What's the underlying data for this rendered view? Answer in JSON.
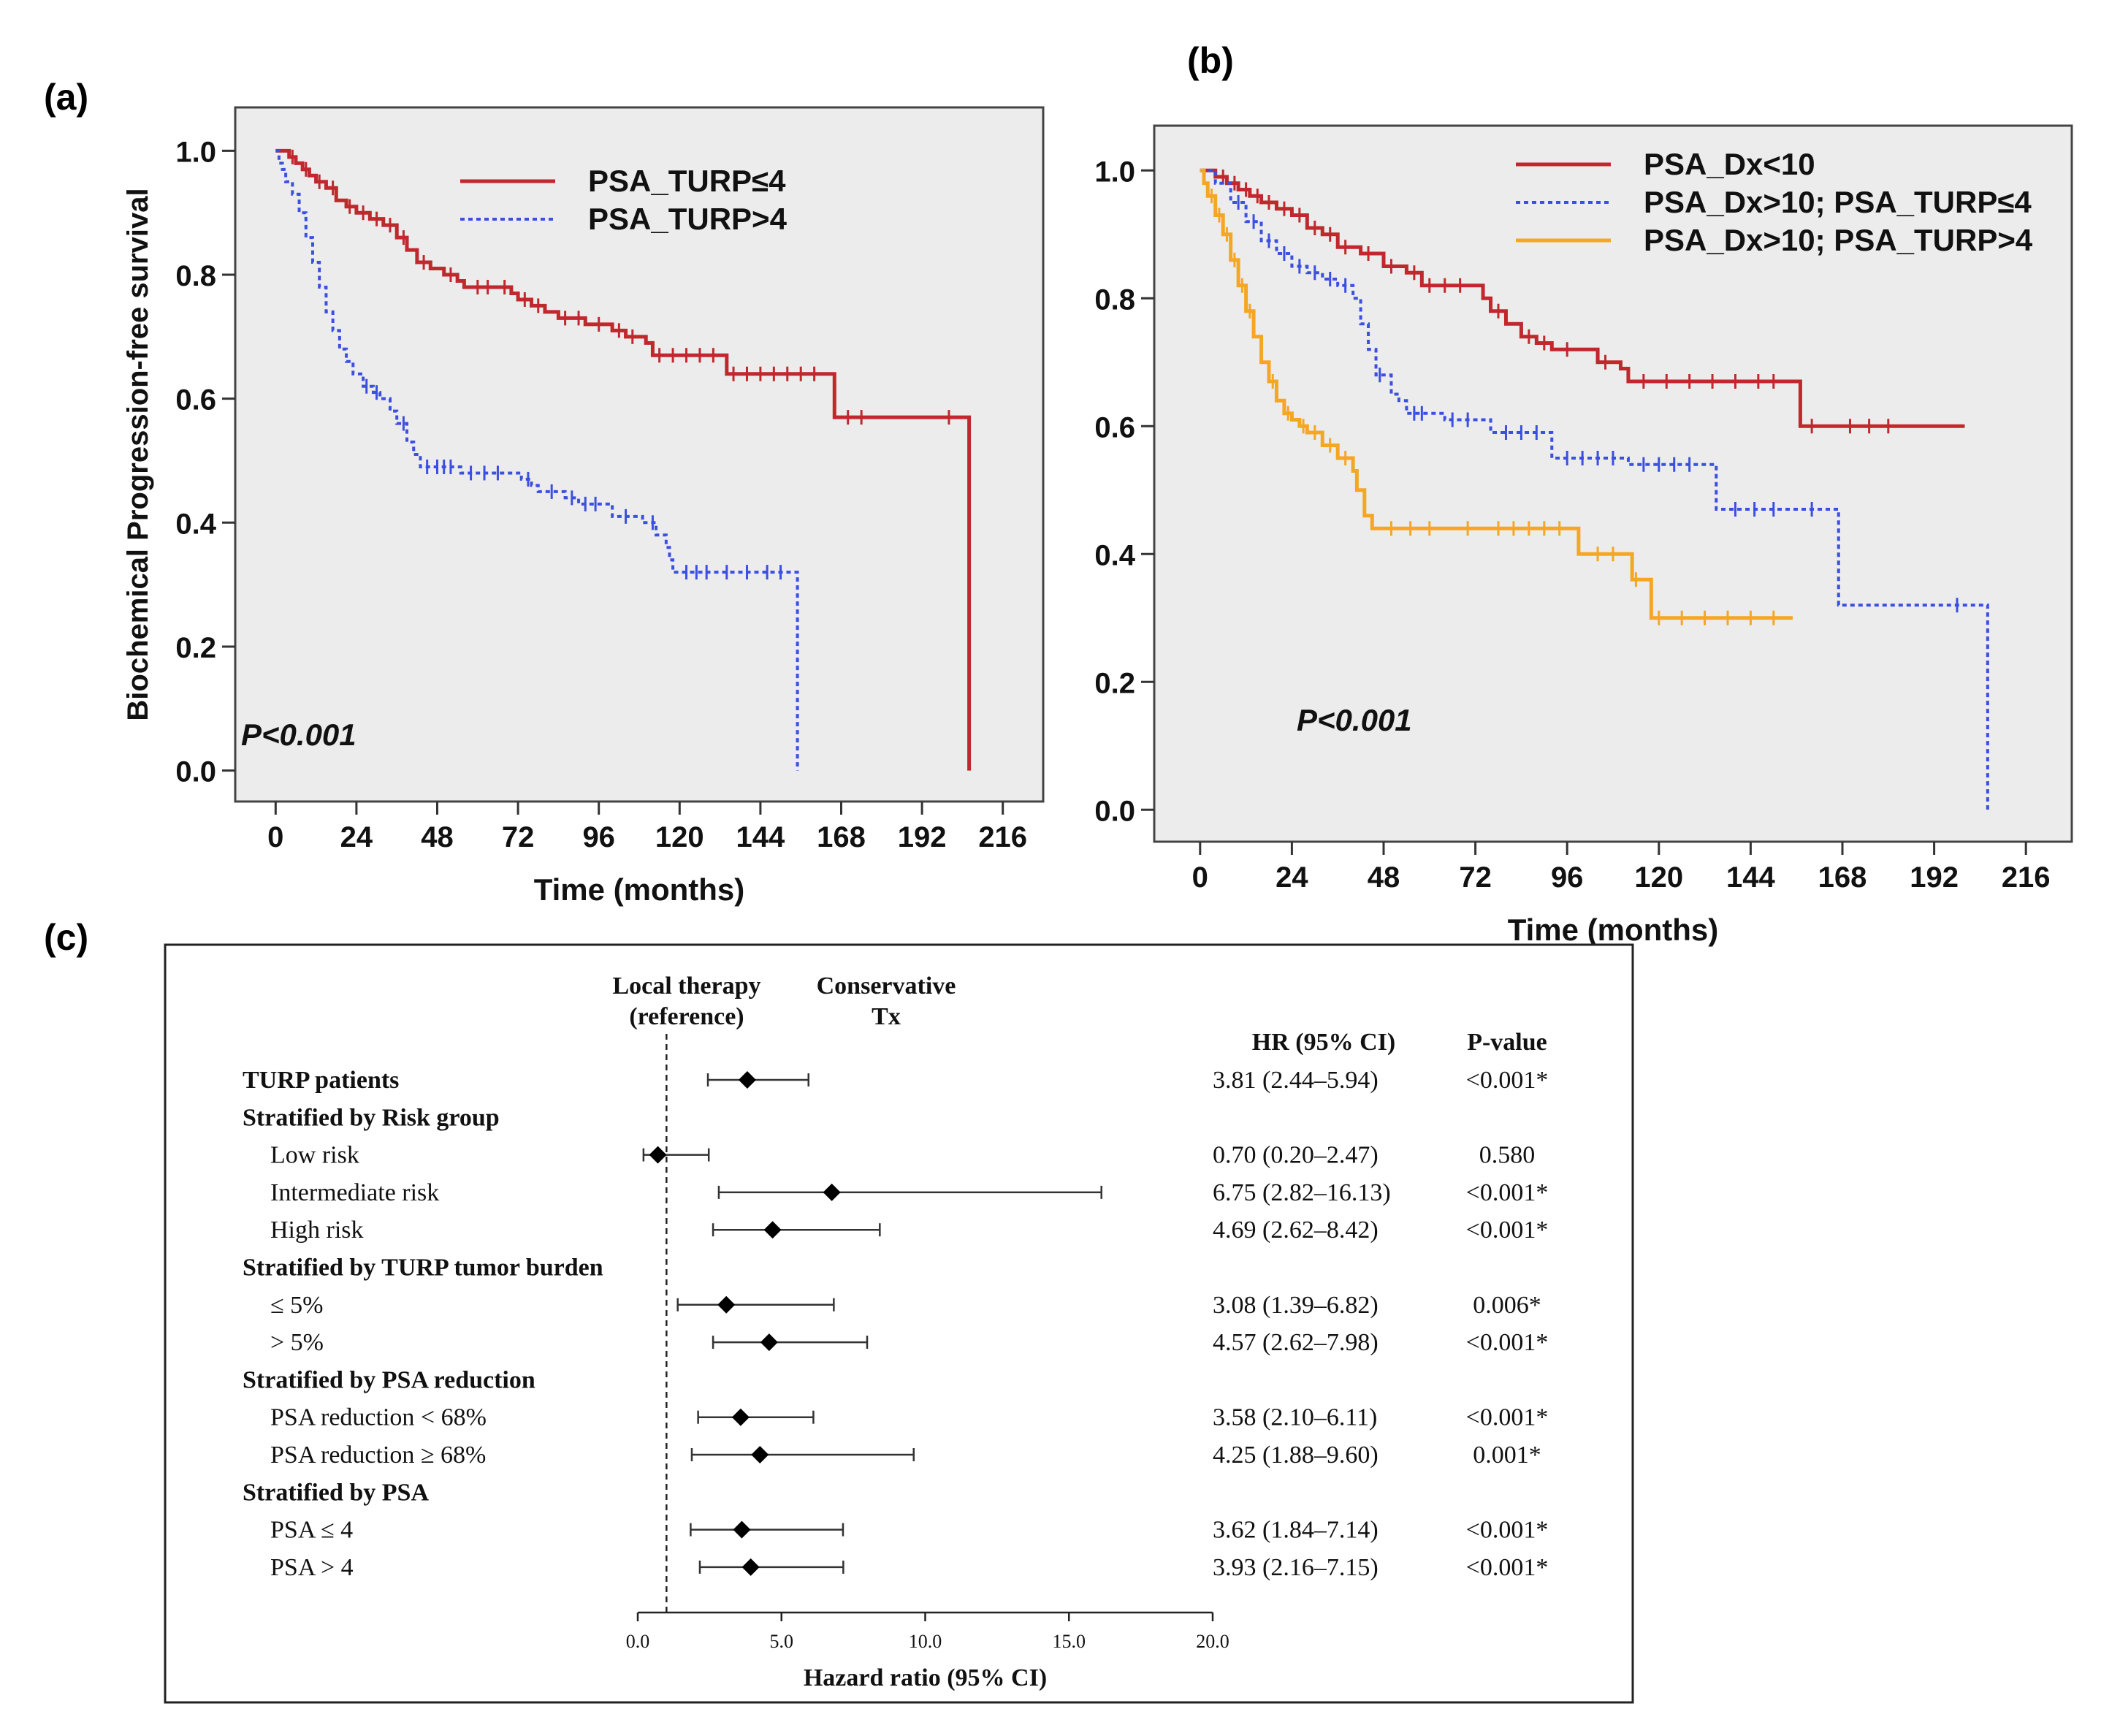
{
  "chart_data": [
    {
      "id": "a",
      "panel_label": "(a)",
      "type": "line",
      "subtype": "kaplan-meier",
      "xlabel": "Time (months)",
      "ylabel": "Biochemical Progression-free survival",
      "xlim": [
        -12,
        228
      ],
      "ylim": [
        -0.05,
        1.07
      ],
      "xticks": [
        0,
        24,
        48,
        72,
        96,
        120,
        144,
        168,
        192,
        216
      ],
      "yticks": [
        0.0,
        0.2,
        0.4,
        0.6,
        0.8,
        1.0
      ],
      "ytick_labels": [
        "0.0",
        "0.2",
        "0.4",
        "0.6",
        "0.8",
        "1.0"
      ],
      "annotation": "P<0.001",
      "legend_position": "top-right",
      "series": [
        {
          "name": "PSA_TURP≤4",
          "color": "#c0282d",
          "dash": "solid",
          "steps": [
            [
              0,
              1.0
            ],
            [
              3,
              1.0
            ],
            [
              4,
              0.99
            ],
            [
              6,
              0.98
            ],
            [
              8,
              0.97
            ],
            [
              10,
              0.96
            ],
            [
              12,
              0.95
            ],
            [
              15,
              0.94
            ],
            [
              18,
              0.92
            ],
            [
              21,
              0.91
            ],
            [
              24,
              0.9
            ],
            [
              28,
              0.89
            ],
            [
              32,
              0.88
            ],
            [
              36,
              0.86
            ],
            [
              39,
              0.84
            ],
            [
              42,
              0.82
            ],
            [
              46,
              0.81
            ],
            [
              50,
              0.8
            ],
            [
              54,
              0.79
            ],
            [
              56,
              0.78
            ],
            [
              66,
              0.78
            ],
            [
              70,
              0.77
            ],
            [
              72,
              0.76
            ],
            [
              76,
              0.75
            ],
            [
              80,
              0.74
            ],
            [
              84,
              0.73
            ],
            [
              88,
              0.73
            ],
            [
              92,
              0.72
            ],
            [
              98,
              0.72
            ],
            [
              100,
              0.71
            ],
            [
              104,
              0.7
            ],
            [
              110,
              0.69
            ],
            [
              112,
              0.67
            ],
            [
              132,
              0.67
            ],
            [
              134,
              0.64
            ],
            [
              165,
              0.64
            ],
            [
              166,
              0.57
            ],
            [
              206,
              0.57
            ],
            [
              206,
              0.0
            ]
          ],
          "censor_x": [
            5,
            9,
            13,
            17,
            22,
            26,
            30,
            34,
            38,
            44,
            52,
            60,
            63,
            68,
            74,
            78,
            86,
            90,
            96,
            102,
            106,
            114,
            118,
            122,
            126,
            130,
            136,
            140,
            144,
            148,
            152,
            156,
            160,
            170,
            174,
            200
          ]
        },
        {
          "name": "PSA_TURP>4",
          "color": "#3b4fe0",
          "dash": "dotted",
          "steps": [
            [
              0,
              1.0
            ],
            [
              1,
              0.98
            ],
            [
              2,
              0.97
            ],
            [
              3,
              0.95
            ],
            [
              5,
              0.93
            ],
            [
              7,
              0.9
            ],
            [
              9,
              0.86
            ],
            [
              11,
              0.82
            ],
            [
              13,
              0.78
            ],
            [
              15,
              0.74
            ],
            [
              17,
              0.71
            ],
            [
              19,
              0.68
            ],
            [
              21,
              0.66
            ],
            [
              23,
              0.64
            ],
            [
              26,
              0.62
            ],
            [
              29,
              0.61
            ],
            [
              31,
              0.6
            ],
            [
              34,
              0.58
            ],
            [
              36,
              0.56
            ],
            [
              39,
              0.53
            ],
            [
              41,
              0.51
            ],
            [
              43,
              0.49
            ],
            [
              53,
              0.49
            ],
            [
              55,
              0.48
            ],
            [
              71,
              0.48
            ],
            [
              73,
              0.47
            ],
            [
              76,
              0.46
            ],
            [
              78,
              0.45
            ],
            [
              84,
              0.45
            ],
            [
              86,
              0.44
            ],
            [
              90,
              0.43
            ],
            [
              98,
              0.43
            ],
            [
              100,
              0.41
            ],
            [
              107,
              0.41
            ],
            [
              109,
              0.4
            ],
            [
              113,
              0.38
            ],
            [
              116,
              0.36
            ],
            [
              117,
              0.34
            ],
            [
              118,
              0.32
            ],
            [
              155,
              0.32
            ],
            [
              155,
              0.0
            ]
          ],
          "censor_x": [
            27,
            30,
            38,
            45,
            48,
            50,
            52,
            58,
            62,
            66,
            75,
            82,
            88,
            92,
            95,
            104,
            112,
            122,
            125,
            128,
            134,
            140,
            146,
            150
          ]
        }
      ]
    },
    {
      "id": "b",
      "panel_label": "(b)",
      "type": "line",
      "subtype": "kaplan-meier",
      "xlabel": "Time (months)",
      "ylabel": "",
      "xlim": [
        -12,
        228
      ],
      "ylim": [
        -0.05,
        1.07
      ],
      "xticks": [
        0,
        24,
        48,
        72,
        96,
        120,
        144,
        168,
        192,
        216
      ],
      "yticks": [
        0.0,
        0.2,
        0.4,
        0.6,
        0.8,
        1.0
      ],
      "ytick_labels": [
        "0.0",
        "0.2",
        "0.4",
        "0.6",
        "0.8",
        "1.0"
      ],
      "annotation": "P<0.001",
      "legend_position": "top-right",
      "series": [
        {
          "name": "PSA_Dx<10",
          "color": "#c0282d",
          "dash": "solid",
          "steps": [
            [
              0,
              1.0
            ],
            [
              4,
              0.99
            ],
            [
              7,
              0.98
            ],
            [
              10,
              0.97
            ],
            [
              13,
              0.96
            ],
            [
              16,
              0.95
            ],
            [
              20,
              0.94
            ],
            [
              24,
              0.93
            ],
            [
              28,
              0.91
            ],
            [
              32,
              0.9
            ],
            [
              36,
              0.88
            ],
            [
              42,
              0.87
            ],
            [
              48,
              0.85
            ],
            [
              54,
              0.84
            ],
            [
              58,
              0.82
            ],
            [
              72,
              0.82
            ],
            [
              74,
              0.8
            ],
            [
              76,
              0.78
            ],
            [
              80,
              0.76
            ],
            [
              84,
              0.74
            ],
            [
              88,
              0.73
            ],
            [
              92,
              0.72
            ],
            [
              100,
              0.72
            ],
            [
              104,
              0.7
            ],
            [
              110,
              0.69
            ],
            [
              112,
              0.67
            ],
            [
              156,
              0.67
            ],
            [
              157,
              0.6
            ],
            [
              200,
              0.6
            ]
          ],
          "censor_x": [
            6,
            9,
            12,
            15,
            18,
            22,
            26,
            30,
            34,
            38,
            44,
            50,
            56,
            60,
            64,
            68,
            78,
            86,
            90,
            96,
            106,
            116,
            122,
            128,
            134,
            140,
            146,
            150,
            160,
            170,
            175,
            180
          ]
        },
        {
          "name": "PSA_Dx>10; PSA_TURP≤4",
          "color": "#3b4fe0",
          "dash": "dotted",
          "steps": [
            [
              0,
              1.0
            ],
            [
              4,
              0.98
            ],
            [
              8,
              0.95
            ],
            [
              12,
              0.92
            ],
            [
              16,
              0.89
            ],
            [
              20,
              0.87
            ],
            [
              24,
              0.85
            ],
            [
              28,
              0.84
            ],
            [
              32,
              0.83
            ],
            [
              36,
              0.82
            ],
            [
              40,
              0.8
            ],
            [
              42,
              0.76
            ],
            [
              44,
              0.72
            ],
            [
              46,
              0.68
            ],
            [
              50,
              0.65
            ],
            [
              52,
              0.64
            ],
            [
              54,
              0.62
            ],
            [
              62,
              0.62
            ],
            [
              64,
              0.61
            ],
            [
              74,
              0.61
            ],
            [
              76,
              0.59
            ],
            [
              90,
              0.59
            ],
            [
              92,
              0.55
            ],
            [
              110,
              0.55
            ],
            [
              112,
              0.54
            ],
            [
              134,
              0.54
            ],
            [
              135,
              0.47
            ],
            [
              166,
              0.47
            ],
            [
              167,
              0.32
            ],
            [
              206,
              0.32
            ],
            [
              206,
              0.0
            ]
          ],
          "censor_x": [
            10,
            14,
            18,
            22,
            26,
            30,
            34,
            38,
            47,
            56,
            58,
            66,
            70,
            80,
            84,
            88,
            96,
            100,
            104,
            108,
            116,
            120,
            124,
            128,
            140,
            145,
            150,
            160,
            198
          ]
        },
        {
          "name": "PSA_Dx>10; PSA_TURP>4",
          "color": "#f5a623",
          "dash": "solid",
          "steps": [
            [
              0,
              1.0
            ],
            [
              1,
              0.98
            ],
            [
              2,
              0.96
            ],
            [
              4,
              0.93
            ],
            [
              6,
              0.9
            ],
            [
              8,
              0.86
            ],
            [
              10,
              0.82
            ],
            [
              12,
              0.78
            ],
            [
              14,
              0.74
            ],
            [
              16,
              0.7
            ],
            [
              18,
              0.67
            ],
            [
              20,
              0.64
            ],
            [
              22,
              0.62
            ],
            [
              24,
              0.61
            ],
            [
              26,
              0.6
            ],
            [
              28,
              0.59
            ],
            [
              32,
              0.57
            ],
            [
              36,
              0.55
            ],
            [
              40,
              0.53
            ],
            [
              41,
              0.5
            ],
            [
              43,
              0.46
            ],
            [
              45,
              0.44
            ],
            [
              98,
              0.44
            ],
            [
              99,
              0.4
            ],
            [
              112,
              0.4
            ],
            [
              113,
              0.36
            ],
            [
              116,
              0.36
            ],
            [
              118,
              0.3
            ],
            [
              155,
              0.3
            ]
          ],
          "censor_x": [
            3,
            5,
            7,
            9,
            11,
            13,
            19,
            23,
            27,
            30,
            34,
            38,
            50,
            55,
            60,
            70,
            78,
            82,
            86,
            90,
            94,
            104,
            108,
            114,
            120,
            126,
            132,
            138,
            144,
            150
          ]
        }
      ]
    },
    {
      "id": "c",
      "panel_label": "(c)",
      "type": "forest",
      "xlabel": "Hazard ratio (95% CI)",
      "xlim": [
        0,
        20
      ],
      "xticks": [
        0,
        5,
        10,
        15,
        20
      ],
      "xtick_labels": [
        "0.0",
        "5.0",
        "10.0",
        "15.0",
        "20.0"
      ],
      "reference_value": 1.0,
      "reference_label": [
        "Local therapy",
        "(reference)"
      ],
      "comparison_label": [
        "Conservative",
        "Tx"
      ],
      "hr_header": "HR (95% CI)",
      "p_header": "P-value",
      "rows": [
        {
          "label": "TURP patients",
          "bold": true,
          "indent": false,
          "hr": 3.81,
          "lo": 2.44,
          "hi": 5.94,
          "hr_text": "3.81 (2.44–5.94)",
          "p": "<0.001*"
        },
        {
          "label": "Stratified by Risk group",
          "bold": true,
          "indent": false,
          "hr": null,
          "hr_text": "",
          "p": ""
        },
        {
          "label": "Low risk",
          "bold": false,
          "indent": true,
          "hr": 0.7,
          "lo": 0.2,
          "hi": 2.47,
          "hr_text": "0.70 (0.20–2.47)",
          "p": "0.580"
        },
        {
          "label": "Intermediate risk",
          "bold": false,
          "indent": true,
          "hr": 6.75,
          "lo": 2.82,
          "hi": 16.13,
          "hr_text": "6.75 (2.82–16.13)",
          "p": "<0.001*"
        },
        {
          "label": "High risk",
          "bold": false,
          "indent": true,
          "hr": 4.69,
          "lo": 2.62,
          "hi": 8.42,
          "hr_text": "4.69 (2.62–8.42)",
          "p": "<0.001*"
        },
        {
          "label": "Stratified by TURP tumor burden",
          "bold": true,
          "indent": false,
          "hr": null,
          "hr_text": "",
          "p": ""
        },
        {
          "label": "≤ 5%",
          "bold": false,
          "indent": true,
          "hr": 3.08,
          "lo": 1.39,
          "hi": 6.82,
          "hr_text": "3.08 (1.39–6.82)",
          "p": "0.006*"
        },
        {
          "label": "> 5%",
          "bold": false,
          "indent": true,
          "hr": 4.57,
          "lo": 2.62,
          "hi": 7.98,
          "hr_text": "4.57 (2.62–7.98)",
          "p": "<0.001*"
        },
        {
          "label": "Stratified by PSA reduction",
          "bold": true,
          "indent": false,
          "hr": null,
          "hr_text": "",
          "p": ""
        },
        {
          "label": "PSA reduction < 68%",
          "bold": false,
          "indent": true,
          "hr": 3.58,
          "lo": 2.1,
          "hi": 6.11,
          "hr_text": "3.58 (2.10–6.11)",
          "p": "<0.001*"
        },
        {
          "label": "PSA reduction ≥ 68%",
          "bold": false,
          "indent": true,
          "hr": 4.25,
          "lo": 1.88,
          "hi": 9.6,
          "hr_text": "4.25 (1.88–9.60)",
          "p": "0.001*"
        },
        {
          "label": "Stratified by PSA",
          "bold": true,
          "indent": false,
          "hr": null,
          "hr_text": "",
          "p": ""
        },
        {
          "label": "PSA ≤ 4",
          "bold": false,
          "indent": true,
          "hr": 3.62,
          "lo": 1.84,
          "hi": 7.14,
          "hr_text": "3.62 (1.84–7.14)",
          "p": "<0.001*"
        },
        {
          "label": "PSA > 4",
          "bold": false,
          "indent": true,
          "hr": 3.93,
          "lo": 2.16,
          "hi": 7.15,
          "hr_text": "3.93 (2.16–7.15)",
          "p": "<0.001*"
        }
      ]
    }
  ]
}
